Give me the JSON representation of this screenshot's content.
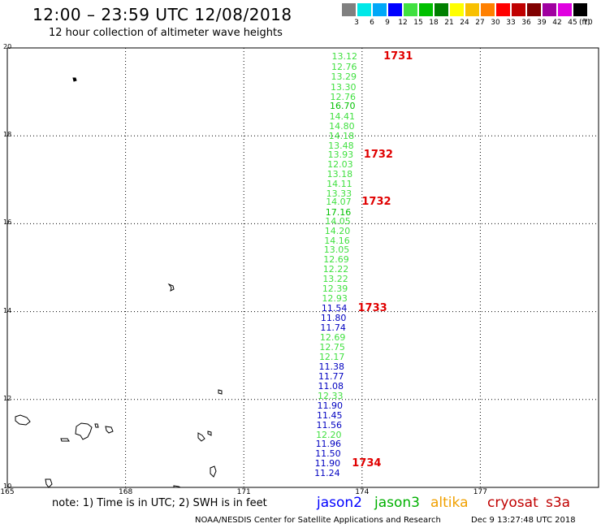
{
  "title": "12:00 – 23:59 UTC 12/08/2018",
  "subtitle": "12 hour collection of altimeter wave heights",
  "legend": {
    "unit": "(ft)",
    "bins": [
      {
        "label": "3",
        "color": "#808080"
      },
      {
        "label": "6",
        "color": "#00e8e8"
      },
      {
        "label": "9",
        "color": "#00a8f8"
      },
      {
        "label": "12",
        "color": "#0000ff"
      },
      {
        "label": "15",
        "color": "#40e040"
      },
      {
        "label": "18",
        "color": "#00c000"
      },
      {
        "label": "21",
        "color": "#008000"
      },
      {
        "label": "24",
        "color": "#ffff00"
      },
      {
        "label": "27",
        "color": "#f8c000"
      },
      {
        "label": "30",
        "color": "#ff8000"
      },
      {
        "label": "33",
        "color": "#ff0000"
      },
      {
        "label": "36",
        "color": "#c00000"
      },
      {
        "label": "39",
        "color": "#800000"
      },
      {
        "label": "42",
        "color": "#a000a0"
      },
      {
        "label": "45",
        "color": "#e000e0"
      },
      {
        "label": "70",
        "color": "#000000"
      }
    ]
  },
  "map": {
    "lat_range": [
      10,
      20
    ],
    "lon_range": [
      165,
      180
    ],
    "lat_ticks": [
      "20",
      "18",
      "16",
      "14",
      "12",
      "10"
    ],
    "lon_ticks": [
      "165",
      "168",
      "171",
      "174",
      "177"
    ]
  },
  "track": [
    {
      "v": "13.12",
      "lon": 173.88,
      "lat": 19.82,
      "c": "#40e040"
    },
    {
      "v": "12.76",
      "lon": 173.87,
      "lat": 19.57,
      "c": "#40e040"
    },
    {
      "v": "13.29",
      "lon": 173.86,
      "lat": 19.35,
      "c": "#40e040"
    },
    {
      "v": "13.30",
      "lon": 173.85,
      "lat": 19.12,
      "c": "#40e040"
    },
    {
      "v": "12.76",
      "lon": 173.84,
      "lat": 18.9,
      "c": "#40e040"
    },
    {
      "v": "16.70",
      "lon": 173.83,
      "lat": 18.68,
      "c": "#00c000"
    },
    {
      "v": "14.41",
      "lon": 173.82,
      "lat": 18.45,
      "c": "#40e040"
    },
    {
      "v": "14.80",
      "lon": 173.81,
      "lat": 18.23,
      "c": "#40e040"
    },
    {
      "v": "14.18",
      "lon": 173.8,
      "lat": 18.01,
      "c": "#40e040"
    },
    {
      "v": "13.48",
      "lon": 173.79,
      "lat": 17.79,
      "c": "#40e040"
    },
    {
      "v": "13.93",
      "lon": 173.78,
      "lat": 17.57,
      "c": "#40e040"
    },
    {
      "v": "12.03",
      "lon": 173.77,
      "lat": 17.35,
      "c": "#40e040"
    },
    {
      "v": "13.18",
      "lon": 173.76,
      "lat": 17.13,
      "c": "#40e040"
    },
    {
      "v": "14.11",
      "lon": 173.75,
      "lat": 16.91,
      "c": "#40e040"
    },
    {
      "v": "13.33",
      "lon": 173.74,
      "lat": 16.69,
      "c": "#40e040"
    },
    {
      "v": "14.07",
      "lon": 173.73,
      "lat": 16.51,
      "c": "#40e040"
    },
    {
      "v": "17.16",
      "lon": 173.72,
      "lat": 16.27,
      "c": "#00c000"
    },
    {
      "v": "14.05",
      "lon": 173.71,
      "lat": 16.06,
      "c": "#40e040"
    },
    {
      "v": "14.20",
      "lon": 173.7,
      "lat": 15.84,
      "c": "#40e040"
    },
    {
      "v": "14.16",
      "lon": 173.69,
      "lat": 15.62,
      "c": "#40e040"
    },
    {
      "v": "13.05",
      "lon": 173.68,
      "lat": 15.41,
      "c": "#40e040"
    },
    {
      "v": "12.69",
      "lon": 173.67,
      "lat": 15.19,
      "c": "#40e040"
    },
    {
      "v": "12.22",
      "lon": 173.66,
      "lat": 14.97,
      "c": "#40e040"
    },
    {
      "v": "13.22",
      "lon": 173.65,
      "lat": 14.75,
      "c": "#40e040"
    },
    {
      "v": "12.39",
      "lon": 173.64,
      "lat": 14.53,
      "c": "#40e040"
    },
    {
      "v": "12.93",
      "lon": 173.63,
      "lat": 14.31,
      "c": "#40e040"
    },
    {
      "v": "11.54",
      "lon": 173.62,
      "lat": 14.08,
      "c": "#0000c0"
    },
    {
      "v": "11.80",
      "lon": 173.6,
      "lat": 13.86,
      "c": "#0000c0"
    },
    {
      "v": "11.74",
      "lon": 173.59,
      "lat": 13.64,
      "c": "#0000c0"
    },
    {
      "v": "12.69",
      "lon": 173.58,
      "lat": 13.42,
      "c": "#40e040"
    },
    {
      "v": "12.75",
      "lon": 173.57,
      "lat": 13.2,
      "c": "#40e040"
    },
    {
      "v": "12.17",
      "lon": 173.56,
      "lat": 12.98,
      "c": "#40e040"
    },
    {
      "v": "11.38",
      "lon": 173.55,
      "lat": 12.76,
      "c": "#0000c0"
    },
    {
      "v": "11.77",
      "lon": 173.54,
      "lat": 12.54,
      "c": "#0000c0"
    },
    {
      "v": "11.08",
      "lon": 173.53,
      "lat": 12.31,
      "c": "#0000c0"
    },
    {
      "v": "12.33",
      "lon": 173.52,
      "lat": 12.09,
      "c": "#40e040"
    },
    {
      "v": "11.90",
      "lon": 173.51,
      "lat": 11.87,
      "c": "#0000c0"
    },
    {
      "v": "11.45",
      "lon": 173.5,
      "lat": 11.65,
      "c": "#0000c0"
    },
    {
      "v": "11.56",
      "lon": 173.49,
      "lat": 11.43,
      "c": "#0000c0"
    },
    {
      "v": "12.20",
      "lon": 173.48,
      "lat": 11.21,
      "c": "#40e040"
    },
    {
      "v": "11.96",
      "lon": 173.47,
      "lat": 10.99,
      "c": "#0000c0"
    },
    {
      "v": "11.50",
      "lon": 173.46,
      "lat": 10.77,
      "c": "#0000c0"
    },
    {
      "v": "11.90",
      "lon": 173.45,
      "lat": 10.55,
      "c": "#0000c0"
    },
    {
      "v": "11.24",
      "lon": 173.44,
      "lat": 10.33,
      "c": "#0000c0"
    }
  ],
  "times": [
    {
      "t": "1731",
      "lon": 174.5,
      "lat": 19.82
    },
    {
      "t": "1732",
      "lon": 174.0,
      "lat": 17.57
    },
    {
      "t": "1732",
      "lon": 173.95,
      "lat": 16.51
    },
    {
      "t": "1733",
      "lon": 173.85,
      "lat": 14.08
    },
    {
      "t": "1734",
      "lon": 173.7,
      "lat": 10.55
    }
  ],
  "note": "note: 1) Time is in UTC; 2) SWH is in feet",
  "satellites": [
    {
      "name": "jason2",
      "color": "#0000ff"
    },
    {
      "name": "jason3",
      "color": "#00b000"
    },
    {
      "name": "altika",
      "color": "#f0a000"
    },
    {
      "name": "cryosat",
      "color": "#c00000"
    },
    {
      "name": "s3a",
      "color": "#c00000"
    }
  ],
  "footer": "NOAA/NESDIS Center for Satellite Applications and Research",
  "footer_time": "Dec  9 13:27:48 UTC 2018"
}
